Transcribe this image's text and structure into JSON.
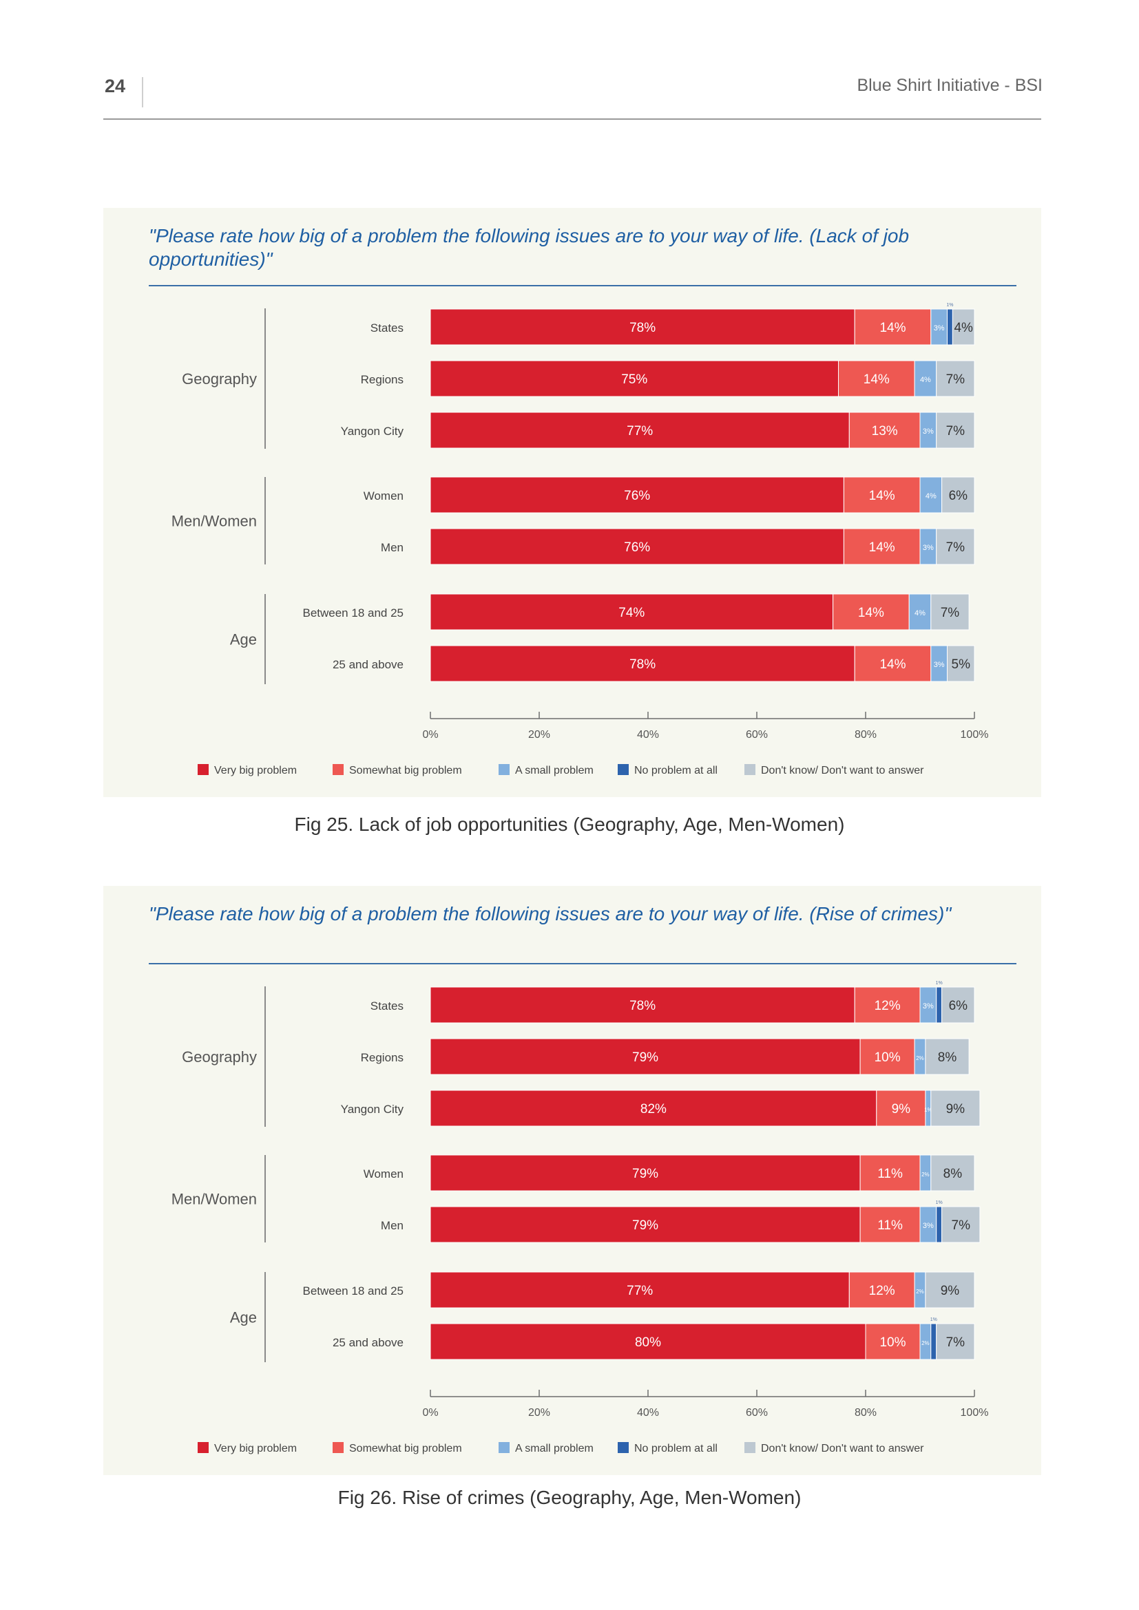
{
  "page": {
    "number": "24",
    "header": "Blue Shirt Initiative - BSI"
  },
  "colors": {
    "very_big": "#d7202e",
    "somewhat_big": "#ee5852",
    "small": "#82b0de",
    "none": "#2d63ad",
    "dont_know": "#bdc8d1",
    "title": "#1f5fa3"
  },
  "chart_data": [
    {
      "type": "bar",
      "orientation": "horizontal",
      "stacked": true,
      "title": "\"Please rate how big of a problem the following issues are to your way of life. (Lack of job opportunities)\"",
      "caption": "Fig 25. Lack of job opportunities (Geography, Age, Men-Women)",
      "groups": [
        {
          "label": "Geography",
          "categories": [
            "States",
            "Regions",
            "Yangon City"
          ]
        },
        {
          "label": "Men/Women",
          "categories": [
            "Women",
            "Men"
          ]
        },
        {
          "label": "Age",
          "categories": [
            "Between 18 and 25",
            "25 and above"
          ]
        }
      ],
      "categories": [
        "States",
        "Regions",
        "Yangon City",
        "Women",
        "Men",
        "Between 18 and 25",
        "25 and above"
      ],
      "series": [
        {
          "name": "Very big problem",
          "values": [
            78,
            75,
            77,
            76,
            76,
            74,
            78
          ]
        },
        {
          "name": "Somewhat big problem",
          "values": [
            14,
            14,
            13,
            14,
            14,
            14,
            14
          ]
        },
        {
          "name": "A small problem",
          "values": [
            3,
            4,
            3,
            4,
            3,
            4,
            3
          ]
        },
        {
          "name": "No problem at all",
          "values": [
            1,
            0,
            0,
            0,
            0,
            0,
            0
          ]
        },
        {
          "name": "Don't know/ Don't want to answer",
          "values": [
            4,
            7,
            7,
            6,
            7,
            7,
            5
          ]
        }
      ],
      "xticks": [
        "0%",
        "20%",
        "40%",
        "60%",
        "80%",
        "100%"
      ],
      "xlim": [
        0,
        100
      ],
      "legend": "bottom"
    },
    {
      "type": "bar",
      "orientation": "horizontal",
      "stacked": true,
      "title": "\"Please rate how big of a problem the following issues are to your way of life. (Rise of crimes)\"",
      "caption": "Fig 26. Rise of crimes (Geography, Age, Men-Women)",
      "groups": [
        {
          "label": "Geography",
          "categories": [
            "States",
            "Regions",
            "Yangon City"
          ]
        },
        {
          "label": "Men/Women",
          "categories": [
            "Women",
            "Men"
          ]
        },
        {
          "label": "Age",
          "categories": [
            "Between 18 and 25",
            "25 and above"
          ]
        }
      ],
      "categories": [
        "States",
        "Regions",
        "Yangon City",
        "Women",
        "Men",
        "Between 18 and 25",
        "25 and above"
      ],
      "series": [
        {
          "name": "Very big problem",
          "values": [
            78,
            79,
            82,
            79,
            79,
            77,
            80
          ]
        },
        {
          "name": "Somewhat big problem",
          "values": [
            12,
            10,
            9,
            11,
            11,
            12,
            10
          ]
        },
        {
          "name": "A small problem",
          "values": [
            3,
            2,
            1,
            2,
            3,
            2,
            2
          ]
        },
        {
          "name": "No problem at all",
          "values": [
            1,
            0,
            0,
            0,
            1,
            0,
            1
          ]
        },
        {
          "name": "Don't know/ Don't want to answer",
          "values": [
            6,
            8,
            9,
            8,
            7,
            9,
            7
          ]
        }
      ],
      "xticks": [
        "0%",
        "20%",
        "40%",
        "60%",
        "80%",
        "100%"
      ],
      "xlim": [
        0,
        100
      ],
      "legend": "bottom"
    }
  ]
}
